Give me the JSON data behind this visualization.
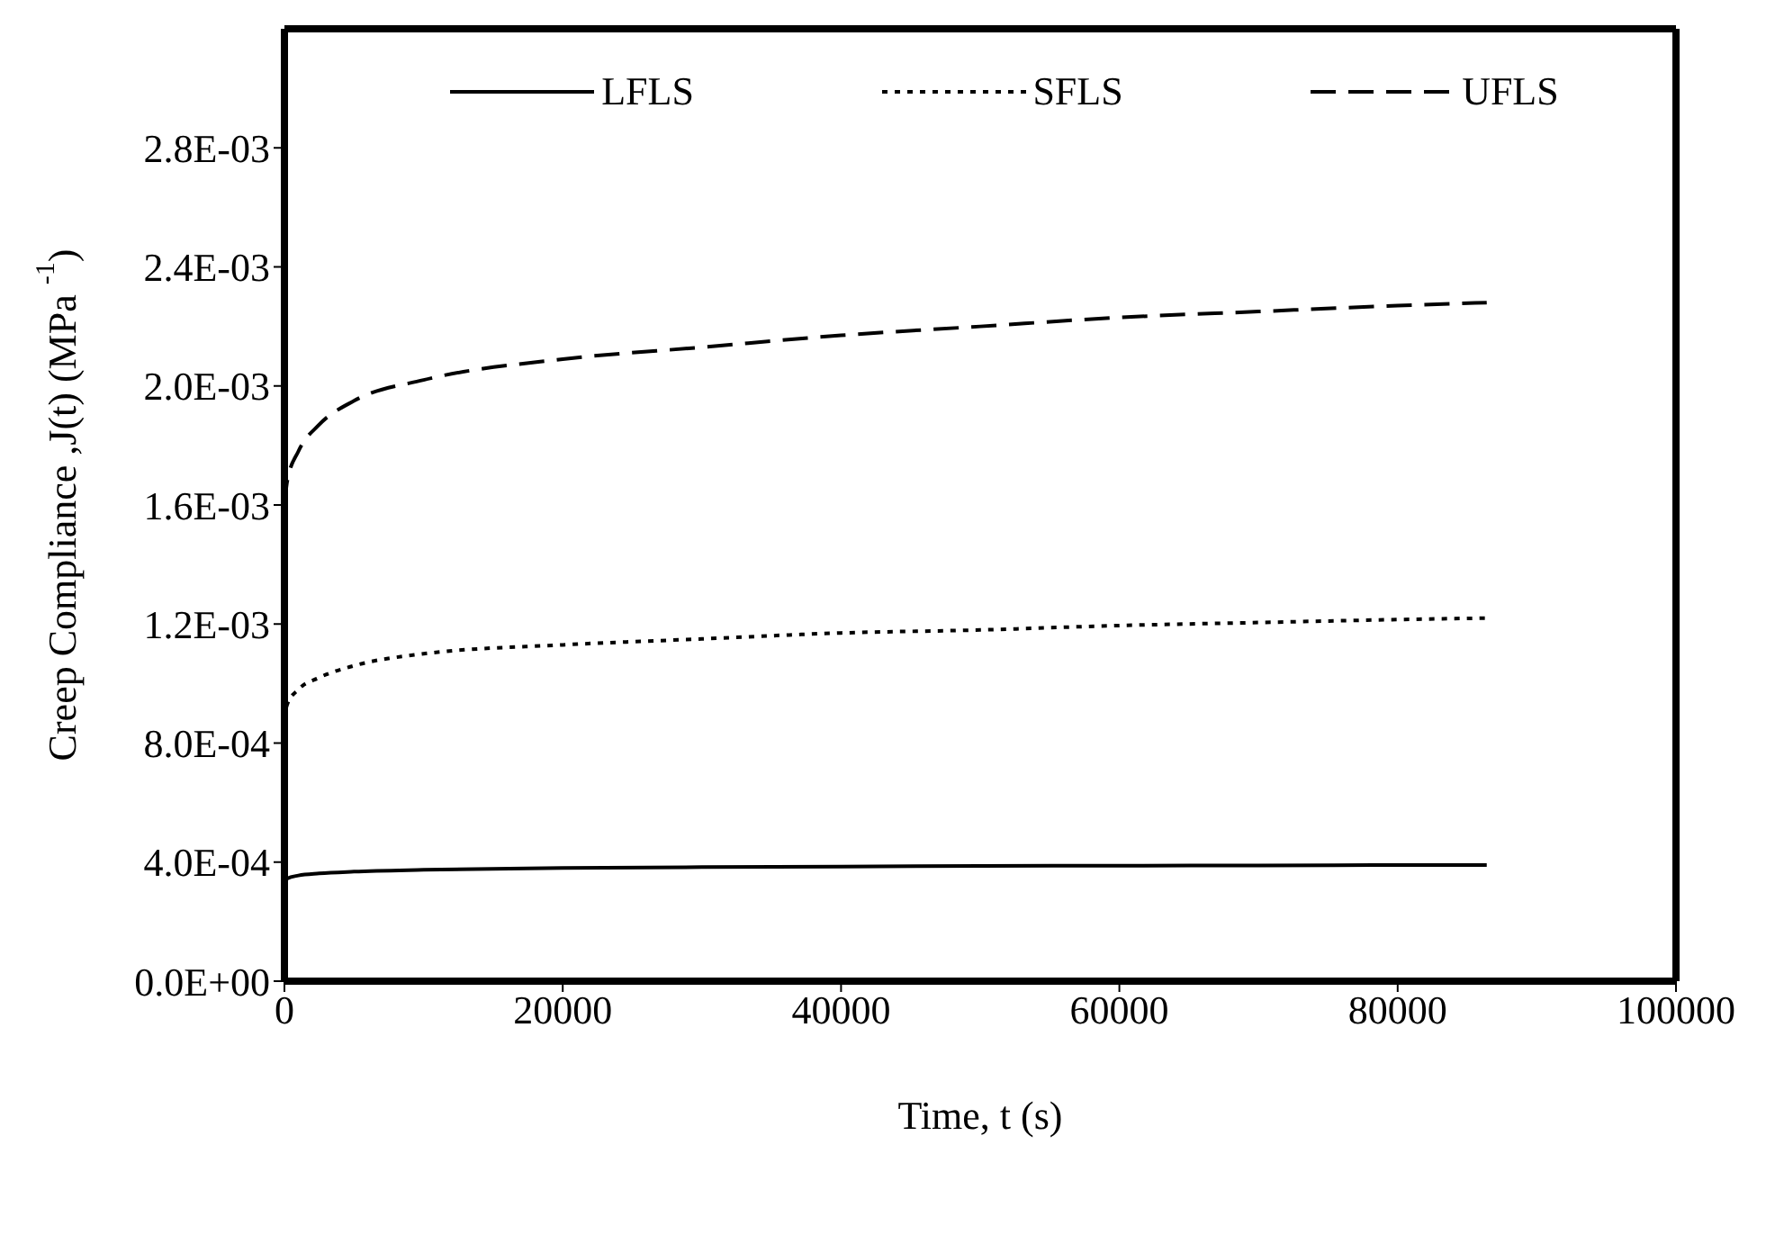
{
  "chart_data": {
    "type": "line",
    "xlabel": "Time, t (s)",
    "ylabel": "Creep Compliance ,J(t) (MPa $^{-1}$)",
    "x": [
      0,
      200,
      1000,
      2500,
      5000,
      10000,
      20000,
      30000,
      40000,
      50000,
      60000,
      70000,
      80000,
      86400
    ],
    "series": [
      {
        "name": "LFLS",
        "color": "#000000",
        "line_style": "solid",
        "values": [
          0.00033,
          0.000345,
          0.000355,
          0.000362,
          0.000368,
          0.000374,
          0.00038,
          0.000383,
          0.000385,
          0.000387,
          0.000388,
          0.000389,
          0.00039,
          0.00039
        ]
      },
      {
        "name": "SFLS",
        "color": "#000000",
        "line_style": "dotted",
        "values": [
          0.00088,
          0.00093,
          0.00098,
          0.00102,
          0.00106,
          0.0011,
          0.00113,
          0.00115,
          0.00117,
          0.00118,
          0.001195,
          0.001205,
          0.001215,
          0.00122
        ]
      },
      {
        "name": "UFLS",
        "color": "#000000",
        "line_style": "dashed",
        "values": [
          0.0016,
          0.00168,
          0.00178,
          0.00187,
          0.00195,
          0.00202,
          0.00209,
          0.00213,
          0.00217,
          0.0022,
          0.00223,
          0.00225,
          0.00227,
          0.00228
        ]
      }
    ],
    "xlim": [
      0,
      100000
    ],
    "xticks": [
      0,
      20000,
      40000,
      60000,
      80000,
      100000
    ],
    "ylim": [
      0,
      0.0032
    ],
    "yticks": [
      {
        "value": 0,
        "label": "0.0E+00"
      },
      {
        "value": 0.0004,
        "label": "4.0E-04"
      },
      {
        "value": 0.0008,
        "label": "8.0E-04"
      },
      {
        "value": 0.0012,
        "label": "1.2E-03"
      },
      {
        "value": 0.0016,
        "label": "1.6E-03"
      },
      {
        "value": 0.002,
        "label": "2.0E-03"
      },
      {
        "value": 0.0024,
        "label": "2.4E-03"
      },
      {
        "value": 0.0028,
        "label": "2.8E-03"
      }
    ],
    "grid": false,
    "legend": "top",
    "marker": "none"
  }
}
